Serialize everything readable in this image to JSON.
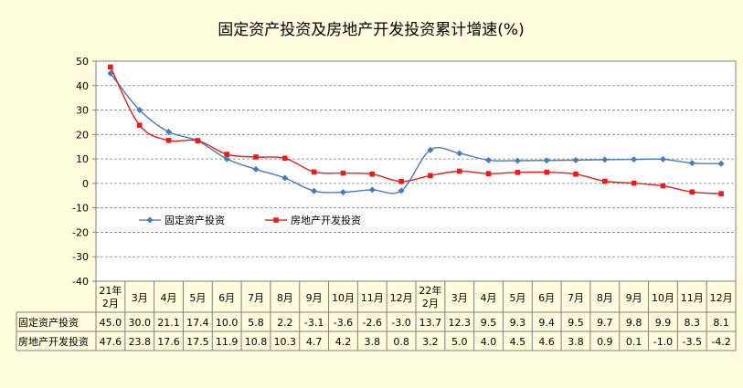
{
  "chart_data": {
    "type": "line",
    "title": "固定资产投资及房地产开发投资累计增速(%)",
    "categories": [
      "21年2月",
      "3月",
      "4月",
      "5月",
      "6月",
      "7月",
      "8月",
      "9月",
      "10月",
      "11月",
      "12月",
      "22年2月",
      "3月",
      "4月",
      "5月",
      "6月",
      "7月",
      "8月",
      "9月",
      "10月",
      "11月",
      "12月"
    ],
    "series": [
      {
        "name": "固定资产投资",
        "color": "#4a7ab8",
        "marker": "diamond",
        "values": [
          45.0,
          30.0,
          21.1,
          17.4,
          10.0,
          5.8,
          2.2,
          -3.1,
          -3.6,
          -2.6,
          -3.0,
          13.7,
          12.3,
          9.5,
          9.3,
          9.4,
          9.5,
          9.7,
          9.8,
          9.9,
          8.3,
          8.1
        ],
        "labels": [
          "45.0",
          "30.0",
          "21.1",
          "17.4",
          "10.0",
          "5.8",
          "2.2",
          "-3.1",
          "-3.6",
          "-2.6",
          "-3.0",
          "13.7",
          "12.3",
          "9.5",
          "9.3",
          "9.4",
          "9.5",
          "9.7",
          "9.8",
          "9.9",
          "8.3",
          "8.1"
        ]
      },
      {
        "name": "房地产开发投资",
        "color": "#e81c1c",
        "marker": "square",
        "values": [
          47.6,
          23.8,
          17.6,
          17.5,
          11.9,
          10.8,
          10.3,
          4.7,
          4.2,
          3.8,
          0.8,
          3.2,
          5.0,
          4.0,
          4.5,
          4.6,
          3.8,
          0.9,
          0.1,
          -1.0,
          -3.5,
          -4.2
        ],
        "labels": [
          "47.6",
          "23.8",
          "17.6",
          "17.5",
          "11.9",
          "10.8",
          "10.3",
          "4.7",
          "4.2",
          "3.8",
          "0.8",
          "3.2",
          "5.0",
          "4.0",
          "4.5",
          "4.6",
          "3.8",
          "0.9",
          "0.1",
          "-1.0",
          "-3.5",
          "-4.2"
        ]
      }
    ],
    "y_ticks": [
      "50",
      "40",
      "30",
      "20",
      "10",
      "0",
      "-10",
      "-20",
      "-30",
      "-40"
    ],
    "ylim": [
      -40,
      50
    ],
    "ystep": 10,
    "grid": true,
    "legend": "inside-lower-left",
    "data_table": true
  }
}
